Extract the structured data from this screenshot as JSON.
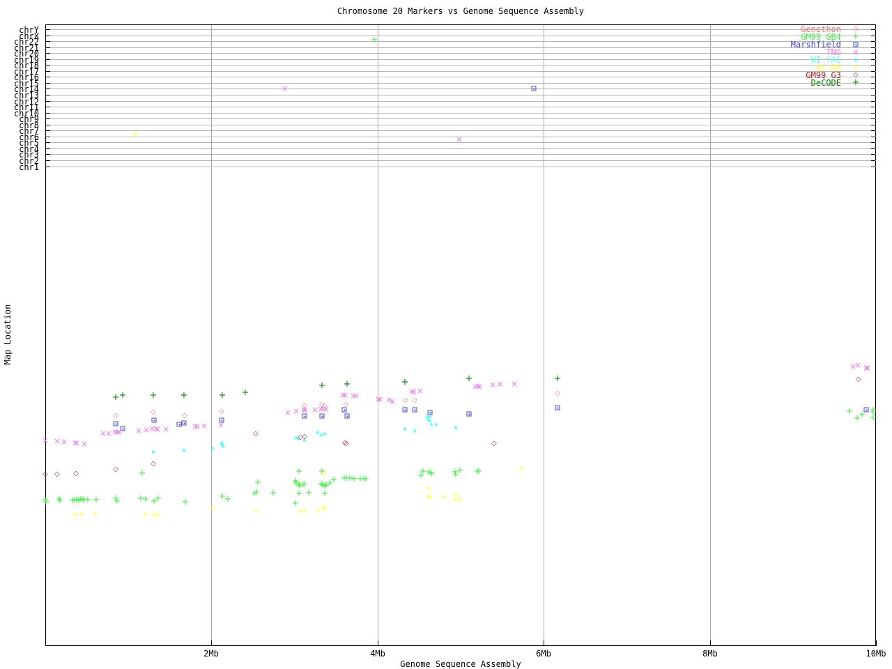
{
  "title": "Chromosome 20 Markers vs Genome Sequence Assembly",
  "x_axis_label": "Genome Sequence Assembly",
  "y_axis_label": "Map Location",
  "chart_data": {
    "type": "scatter",
    "title": "Chromosome 20 Markers vs Genome Sequence Assembly",
    "xlabel": "Genome Sequence Assembly",
    "ylabel": "Map Location",
    "xlim_mb": [
      0,
      10
    ],
    "grid": true,
    "legend_position": "top-right",
    "x_ticks": [
      {
        "value": 2,
        "label": "2Mb"
      },
      {
        "value": 4,
        "label": "4Mb"
      },
      {
        "value": 6,
        "label": "6Mb"
      },
      {
        "value": 8,
        "label": "8Mb"
      },
      {
        "value": 10,
        "label": "10Mb"
      }
    ],
    "band_chromosomes": [
      "chrY",
      "chrX",
      "chr22",
      "chr21",
      "chr20",
      "chr19",
      "chr18",
      "chr17",
      "chr16",
      "chr15",
      "chr14",
      "chr13",
      "chr12",
      "chr11",
      "chr10",
      "chr9",
      "chr8",
      "chr7",
      "chr6",
      "chr5",
      "chr4",
      "chr3",
      "chr2",
      "chr1"
    ],
    "point_units": {
      "x": "Mb",
      "y": "screen_px"
    },
    "series": [
      {
        "slug": "genethon",
        "label": "Genethon",
        "color": "#ee7777",
        "marker": "open-diamond",
        "points": [
          [
            0.85,
            597
          ],
          [
            1.3,
            592
          ],
          [
            1.68,
            597
          ],
          [
            2.12,
            591
          ],
          [
            3.12,
            582
          ],
          [
            3.33,
            581
          ],
          [
            3.36,
            583
          ],
          [
            3.62,
            581
          ],
          [
            4.34,
            575
          ],
          [
            4.45,
            575
          ],
          [
            6.17,
            565
          ]
        ]
      },
      {
        "slug": "gm99-gb4",
        "label": "GM99 GB4",
        "color": "#44ee44",
        "marker": "plus",
        "points": [
          [
            3.96,
            58
          ],
          [
            0.0,
            718
          ],
          [
            0.01,
            721
          ],
          [
            0.17,
            717
          ],
          [
            0.18,
            719
          ],
          [
            0.33,
            719
          ],
          [
            0.35,
            718
          ],
          [
            0.38,
            718
          ],
          [
            0.4,
            719
          ],
          [
            0.43,
            717
          ],
          [
            0.45,
            718
          ],
          [
            0.47,
            718
          ],
          [
            0.51,
            718
          ],
          [
            0.61,
            718
          ],
          [
            0.85,
            716
          ],
          [
            0.86,
            720
          ],
          [
            1.15,
            716
          ],
          [
            1.17,
            680
          ],
          [
            1.21,
            717
          ],
          [
            1.31,
            720
          ],
          [
            1.36,
            716
          ],
          [
            1.69,
            721
          ],
          [
            2.13,
            713
          ],
          [
            2.2,
            717
          ],
          [
            2.52,
            709
          ],
          [
            2.54,
            707
          ],
          [
            2.56,
            693
          ],
          [
            2.74,
            708
          ],
          [
            3.01,
            691
          ],
          [
            3.01,
            723
          ],
          [
            3.02,
            694
          ],
          [
            3.05,
            677
          ],
          [
            3.05,
            696
          ],
          [
            3.05,
            709
          ],
          [
            3.06,
            698
          ],
          [
            3.1,
            696
          ],
          [
            3.12,
            696
          ],
          [
            3.17,
            708
          ],
          [
            3.32,
            695
          ],
          [
            3.33,
            677
          ],
          [
            3.34,
            697
          ],
          [
            3.36,
            698
          ],
          [
            3.36,
            709
          ],
          [
            3.38,
            697
          ],
          [
            3.42,
            694
          ],
          [
            3.47,
            689
          ],
          [
            3.6,
            687
          ],
          [
            3.62,
            687
          ],
          [
            3.67,
            687
          ],
          [
            3.72,
            688
          ],
          [
            3.79,
            688
          ],
          [
            3.83,
            688
          ],
          [
            3.86,
            688
          ],
          [
            4.52,
            683
          ],
          [
            4.55,
            677
          ],
          [
            4.61,
            678
          ],
          [
            4.65,
            679
          ],
          [
            4.65,
            681
          ],
          [
            4.93,
            678
          ],
          [
            4.94,
            682
          ],
          [
            4.99,
            676
          ],
          [
            5.2,
            677
          ],
          [
            5.22,
            677
          ],
          [
            9.68,
            591
          ],
          [
            9.77,
            601
          ],
          [
            9.83,
            596
          ],
          [
            9.97,
            589
          ],
          [
            9.97,
            592
          ],
          [
            9.97,
            600
          ]
        ]
      },
      {
        "slug": "marshfield",
        "label": "Marshfield",
        "color": "#4444cc",
        "marker": "square-dot",
        "points": [
          [
            5.88,
            127
          ],
          [
            0.85,
            608
          ],
          [
            0.93,
            615
          ],
          [
            1.31,
            603
          ],
          [
            1.61,
            609
          ],
          [
            1.67,
            607
          ],
          [
            2.12,
            603
          ],
          [
            3.12,
            597
          ],
          [
            3.33,
            597
          ],
          [
            3.6,
            588
          ],
          [
            3.63,
            597
          ],
          [
            4.33,
            588
          ],
          [
            4.45,
            588
          ],
          [
            4.63,
            592
          ],
          [
            5.1,
            594
          ],
          [
            6.17,
            585
          ],
          [
            9.88,
            588
          ]
        ]
      },
      {
        "slug": "tng",
        "label": "TNG",
        "color": "#ee7bee",
        "marker": "x",
        "points": [
          [
            2.89,
            127
          ],
          [
            4.98,
            200
          ],
          [
            0.0,
            632
          ],
          [
            0.14,
            633
          ],
          [
            0.23,
            634
          ],
          [
            0.36,
            635
          ],
          [
            0.38,
            636
          ],
          [
            0.47,
            637
          ],
          [
            0.7,
            622
          ],
          [
            0.76,
            622
          ],
          [
            0.84,
            620
          ],
          [
            0.86,
            620
          ],
          [
            0.89,
            620
          ],
          [
            1.12,
            618
          ],
          [
            1.22,
            617
          ],
          [
            1.28,
            615
          ],
          [
            1.33,
            615
          ],
          [
            1.35,
            616
          ],
          [
            1.45,
            616
          ],
          [
            1.8,
            612
          ],
          [
            1.83,
            612
          ],
          [
            1.91,
            611
          ],
          [
            2.11,
            610
          ],
          [
            2.92,
            592
          ],
          [
            3.02,
            590
          ],
          [
            3.11,
            588
          ],
          [
            3.13,
            588
          ],
          [
            3.25,
            588
          ],
          [
            3.31,
            587
          ],
          [
            3.35,
            587
          ],
          [
            3.38,
            587
          ],
          [
            3.58,
            567
          ],
          [
            3.61,
            567
          ],
          [
            3.71,
            568
          ],
          [
            3.74,
            568
          ],
          [
            4.01,
            573
          ],
          [
            4.03,
            573
          ],
          [
            4.14,
            574
          ],
          [
            4.18,
            576
          ],
          [
            4.41,
            562
          ],
          [
            4.44,
            562
          ],
          [
            4.51,
            561
          ],
          [
            5.18,
            555
          ],
          [
            5.21,
            554
          ],
          [
            5.23,
            555
          ],
          [
            5.39,
            552
          ],
          [
            5.47,
            551
          ],
          [
            5.65,
            551
          ],
          [
            9.72,
            526
          ],
          [
            9.78,
            524
          ],
          [
            9.88,
            528
          ],
          [
            9.9,
            528
          ]
        ]
      },
      {
        "slug": "wi-yac",
        "label": "WI YAC",
        "color": "#55ffff",
        "marker": "triangle",
        "points": [
          [
            1.3,
            648
          ],
          [
            1.67,
            646
          ],
          [
            2.01,
            643
          ],
          [
            2.12,
            635
          ],
          [
            2.13,
            637
          ],
          [
            2.14,
            640
          ],
          [
            3.02,
            628
          ],
          [
            3.05,
            629
          ],
          [
            3.12,
            631
          ],
          [
            3.28,
            620
          ],
          [
            3.32,
            624
          ],
          [
            3.36,
            622
          ],
          [
            4.33,
            615
          ],
          [
            4.45,
            618
          ],
          [
            4.6,
            598
          ],
          [
            4.61,
            601
          ],
          [
            4.62,
            603
          ],
          [
            4.63,
            597
          ],
          [
            4.65,
            608
          ],
          [
            4.71,
            609
          ],
          [
            4.94,
            613
          ]
        ]
      },
      {
        "slug": "wi-rh",
        "label": "WI RH",
        "color": "#ffff55",
        "marker": "asterisk",
        "points": [
          [
            1.08,
            193
          ],
          [
            0.36,
            739
          ],
          [
            0.44,
            739
          ],
          [
            0.6,
            738
          ],
          [
            1.2,
            739
          ],
          [
            1.3,
            740
          ],
          [
            1.36,
            740
          ],
          [
            2.01,
            729
          ],
          [
            2.54,
            735
          ],
          [
            3.07,
            734
          ],
          [
            3.12,
            734
          ],
          [
            3.29,
            734
          ],
          [
            3.35,
            729
          ],
          [
            3.36,
            731
          ],
          [
            3.36,
            681
          ],
          [
            4.61,
            702
          ],
          [
            4.61,
            714
          ],
          [
            4.63,
            714
          ],
          [
            4.8,
            714
          ],
          [
            4.93,
            718
          ],
          [
            4.94,
            711
          ],
          [
            4.99,
            718
          ],
          [
            5.73,
            674
          ]
        ]
      },
      {
        "slug": "gm99-g3",
        "label": "GM99 G3",
        "color": "#aa2222",
        "marker": "open-diamond",
        "points": [
          [
            0.0,
            681
          ],
          [
            0.14,
            681
          ],
          [
            0.37,
            680
          ],
          [
            0.85,
            674
          ],
          [
            1.3,
            666
          ],
          [
            2.53,
            623
          ],
          [
            3.07,
            628
          ],
          [
            3.12,
            627
          ],
          [
            3.61,
            636
          ],
          [
            3.62,
            637
          ],
          [
            5.4,
            637
          ],
          [
            9.79,
            545
          ]
        ]
      },
      {
        "slug": "decode",
        "label": "DeCODE",
        "color": "#007f00",
        "marker": "plus",
        "points": [
          [
            0.85,
            571
          ],
          [
            0.93,
            568
          ],
          [
            1.3,
            568
          ],
          [
            1.67,
            568
          ],
          [
            2.13,
            568
          ],
          [
            2.41,
            564
          ],
          [
            3.33,
            554
          ],
          [
            3.63,
            552
          ],
          [
            4.33,
            549
          ],
          [
            5.1,
            544
          ],
          [
            6.17,
            544
          ]
        ]
      }
    ]
  }
}
